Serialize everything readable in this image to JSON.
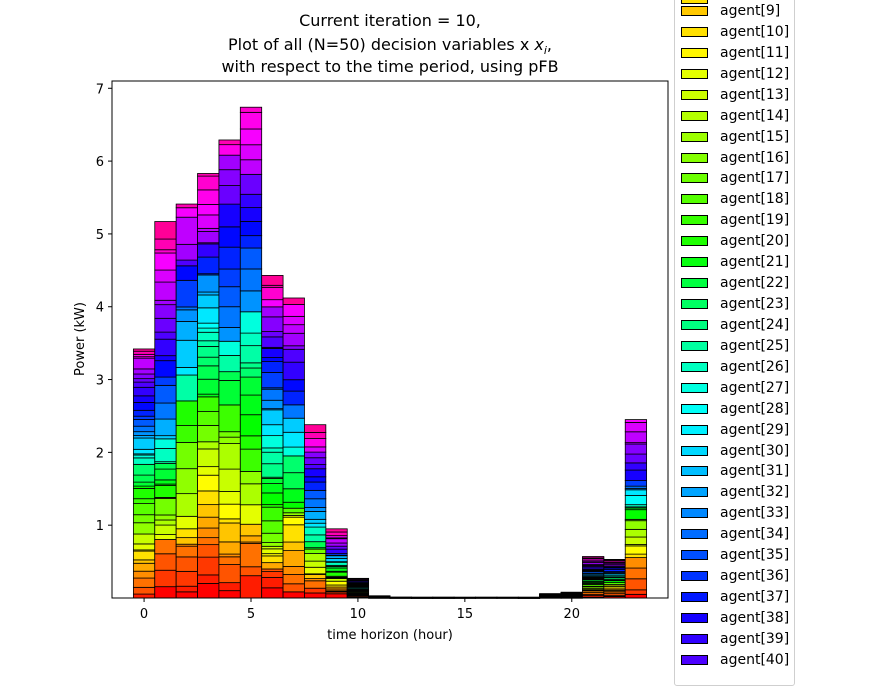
{
  "chart_data": {
    "type": "bar",
    "stacked": true,
    "title_lines": [
      "Current iteration = 10,",
      "Plot of all (N=50) decision variables x",
      "with respect to the time period, using pFB"
    ],
    "title_math_symbol": "x",
    "title_math_subscript": "i",
    "title_math_suffix": ",",
    "xlabel": "time horizon (hour)",
    "ylabel": "Power (kW)",
    "xlim": [
      -1.5,
      24.5
    ],
    "ylim": [
      0,
      7.1
    ],
    "xticks": [
      0,
      5,
      10,
      15,
      20
    ],
    "yticks": [
      1,
      2,
      3,
      4,
      5,
      6,
      7
    ],
    "grid": false,
    "legend_position": "right",
    "legend_visible": [
      "agent[9]",
      "agent[10]",
      "agent[11]",
      "agent[12]",
      "agent[13]",
      "agent[14]",
      "agent[15]",
      "agent[16]",
      "agent[17]",
      "agent[18]",
      "agent[19]",
      "agent[20]",
      "agent[21]",
      "agent[22]",
      "agent[23]",
      "agent[24]",
      "agent[25]",
      "agent[26]",
      "agent[27]",
      "agent[28]",
      "agent[29]",
      "agent[30]",
      "agent[31]",
      "agent[32]",
      "agent[33]",
      "agent[34]",
      "agent[35]",
      "agent[36]",
      "agent[37]",
      "agent[38]",
      "agent[39]",
      "agent[40]"
    ],
    "colors": {
      "agent[9]": "#ffc800",
      "agent[10]": "#ffe000",
      "agent[11]": "#fff600",
      "agent[12]": "#e4ff00",
      "agent[13]": "#ccff00",
      "agent[14]": "#b4ff00",
      "agent[15]": "#9cff00",
      "agent[16]": "#84ff00",
      "agent[17]": "#6cff00",
      "agent[18]": "#54ff00",
      "agent[19]": "#36ff00",
      "agent[20]": "#1eff00",
      "agent[21]": "#08ff10",
      "agent[22]": "#00ff40",
      "agent[23]": "#00ff62",
      "agent[24]": "#00ff80",
      "agent[25]": "#00ffa0",
      "agent[26]": "#00ffc0",
      "agent[27]": "#00ffe0",
      "agent[28]": "#00fff8",
      "agent[29]": "#00f0ff",
      "agent[30]": "#00d8ff",
      "agent[31]": "#00beff",
      "agent[32]": "#00a4ff",
      "agent[33]": "#0088ff",
      "agent[34]": "#006cff",
      "agent[35]": "#0050ff",
      "agent[36]": "#0034ff",
      "agent[37]": "#0018ff",
      "agent[38]": "#1400ff",
      "agent[39]": "#3000ff",
      "agent[40]": "#4c00ff"
    },
    "hours": [
      0,
      1,
      2,
      3,
      4,
      5,
      6,
      7,
      8,
      9,
      10,
      11,
      12,
      13,
      14,
      15,
      16,
      17,
      18,
      19,
      20,
      21,
      22,
      23
    ],
    "totals": [
      3.42,
      5.17,
      5.41,
      5.83,
      6.29,
      6.74,
      4.43,
      4.12,
      2.38,
      0.95,
      0.27,
      0.03,
      0.01,
      0.01,
      0.01,
      0.01,
      0.01,
      0.01,
      0.01,
      0.06,
      0.08,
      0.57,
      0.53,
      2.45
    ]
  }
}
